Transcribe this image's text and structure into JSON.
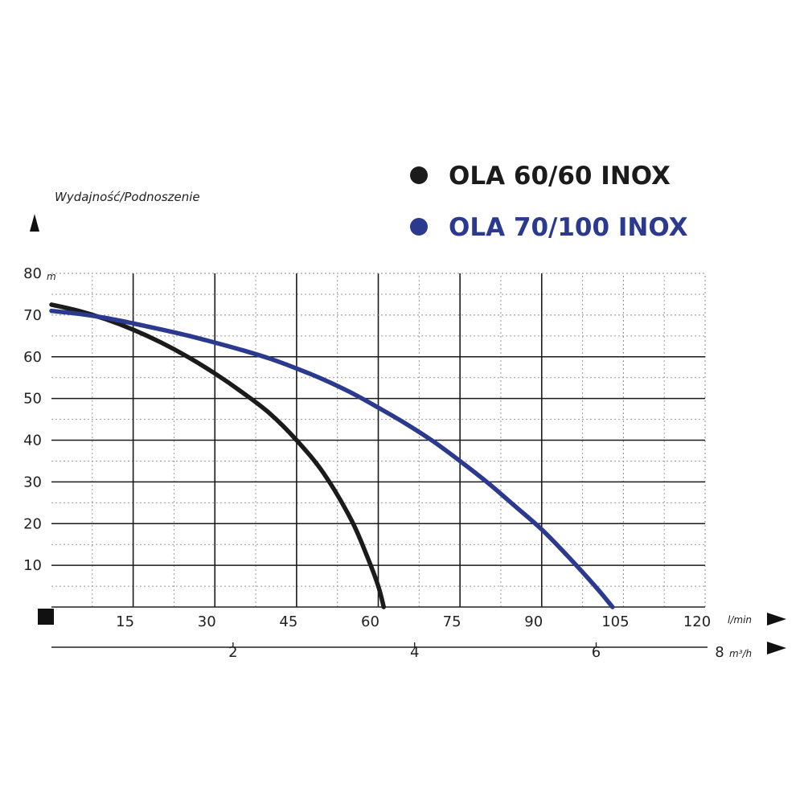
{
  "chart_data": {
    "type": "line",
    "title": "",
    "ylabel": "Wydajność/Podnoszenie",
    "y_unit": "m",
    "x_unit": "l/min",
    "x2_unit": "m³/h",
    "xlim": [
      0,
      120
    ],
    "ylim": [
      0,
      80
    ],
    "x_ticks": [
      "15",
      "30",
      "45",
      "60",
      "75",
      "90",
      "105",
      "120"
    ],
    "y_ticks": [
      "10",
      "20",
      "30",
      "40",
      "50",
      "60",
      "70",
      "80"
    ],
    "x2_ticks": [
      "2",
      "4",
      "6",
      "8"
    ],
    "x2_tick_values": [
      2,
      4,
      6,
      8
    ],
    "grid": true,
    "legend_position": "top-right",
    "series": [
      {
        "name": "OLA 60/60 INOX",
        "color": "#1b1b1b",
        "x": [
          0,
          5,
          10,
          15,
          20,
          25,
          30,
          35,
          40,
          45,
          50,
          55,
          58,
          60,
          61
        ],
        "y": [
          72.5,
          71,
          69,
          66.5,
          63.5,
          60,
          56,
          51.5,
          46.5,
          40,
          32,
          21,
          12,
          5,
          0
        ]
      },
      {
        "name": "OLA 70/100 INOX",
        "color": "#2b3a8f",
        "x": [
          0,
          5,
          10,
          15,
          20,
          25,
          30,
          35,
          40,
          45,
          50,
          55,
          60,
          65,
          70,
          75,
          80,
          85,
          90,
          95,
          100,
          103
        ],
        "y": [
          71,
          70.3,
          69.3,
          68,
          66.6,
          65.1,
          63.4,
          61.6,
          59.6,
          57.2,
          54.5,
          51.4,
          47.8,
          44,
          39.8,
          35,
          29.9,
          24.3,
          18.6,
          11.9,
          4.7,
          0
        ]
      }
    ]
  }
}
